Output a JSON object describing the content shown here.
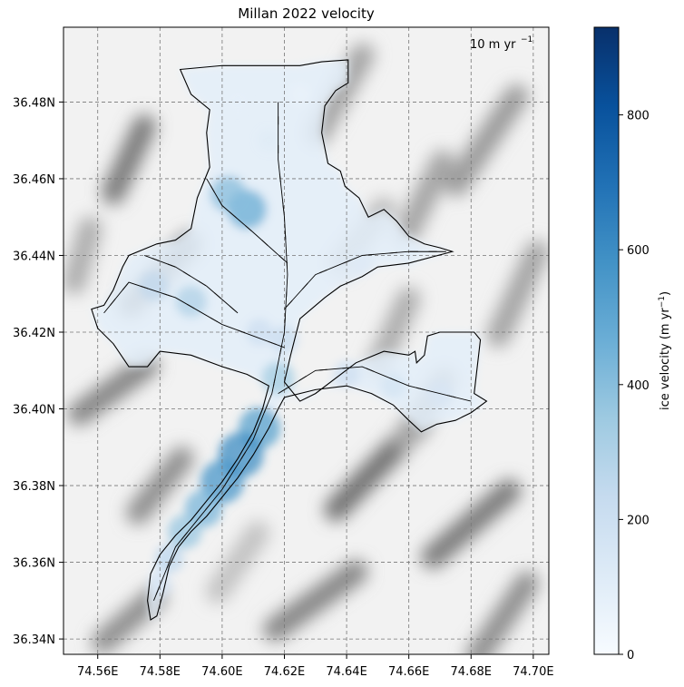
{
  "chart_data": {
    "type": "heatmap",
    "title": "Millan 2022 velocity",
    "x_ticks": [
      74.56,
      74.58,
      74.6,
      74.62,
      74.64,
      74.66,
      74.68,
      74.7
    ],
    "x_tick_labels": [
      "74.56E",
      "74.58E",
      "74.60E",
      "74.62E",
      "74.64E",
      "74.66E",
      "74.68E",
      "74.70E"
    ],
    "y_ticks": [
      36.34,
      36.36,
      36.38,
      36.4,
      36.42,
      36.44,
      36.46,
      36.48
    ],
    "y_tick_labels": [
      "36.34N",
      "36.36N",
      "36.38N",
      "36.40N",
      "36.42N",
      "36.44N",
      "36.46N",
      "36.48N"
    ],
    "xlim": [
      74.549,
      74.705
    ],
    "ylim": [
      36.336,
      36.4995
    ],
    "grid": true,
    "quiver_key_label": "10 m yr",
    "quiver_key_exponent": "−1",
    "colorbar": {
      "label": "ice velocity (m yr",
      "label_exponent": "−1",
      "label_suffix": ")",
      "ticks": [
        0,
        200,
        400,
        600,
        800
      ],
      "tick_labels": [
        "0",
        "200",
        "400",
        "600",
        "800"
      ],
      "range": [
        0,
        930
      ],
      "colormap": "Blues",
      "color_low": "#f7fbff",
      "color_high": "#08306b"
    },
    "glacier_outline": [
      [
        74.5865,
        36.4885
      ],
      [
        74.6,
        36.4895
      ],
      [
        74.625,
        36.4895
      ],
      [
        74.632,
        36.4905
      ],
      [
        74.6405,
        36.491
      ],
      [
        74.6405,
        36.485
      ],
      [
        74.6365,
        36.483
      ],
      [
        74.633,
        36.479
      ],
      [
        74.632,
        36.472
      ],
      [
        74.634,
        36.464
      ],
      [
        74.638,
        36.462
      ],
      [
        74.6395,
        36.458
      ],
      [
        74.644,
        36.455
      ],
      [
        74.647,
        36.45
      ],
      [
        74.652,
        36.452
      ],
      [
        74.656,
        36.449
      ],
      [
        74.66,
        36.445
      ],
      [
        74.665,
        36.443
      ],
      [
        74.67,
        36.442
      ],
      [
        74.674,
        36.441
      ],
      [
        74.66,
        36.438
      ],
      [
        74.65,
        36.437
      ],
      [
        74.645,
        36.4345
      ],
      [
        74.638,
        36.432
      ],
      [
        74.633,
        36.429
      ],
      [
        74.625,
        36.4235
      ],
      [
        74.622,
        36.414
      ],
      [
        74.62,
        36.407
      ],
      [
        74.625,
        36.402
      ],
      [
        74.63,
        36.404
      ],
      [
        74.643,
        36.412
      ],
      [
        74.652,
        36.415
      ],
      [
        74.66,
        36.414
      ],
      [
        74.662,
        36.415
      ],
      [
        74.6625,
        36.412
      ],
      [
        74.665,
        36.414
      ],
      [
        74.666,
        36.419
      ],
      [
        74.67,
        36.42
      ],
      [
        74.681,
        36.42
      ],
      [
        74.683,
        36.418
      ],
      [
        74.681,
        36.404
      ],
      [
        74.685,
        36.402
      ],
      [
        74.68,
        36.399
      ],
      [
        74.675,
        36.397
      ],
      [
        74.669,
        36.396
      ],
      [
        74.664,
        36.394
      ],
      [
        74.66,
        36.397
      ],
      [
        74.655,
        36.401
      ],
      [
        74.648,
        36.404
      ],
      [
        74.64,
        36.406
      ],
      [
        74.63,
        36.405
      ],
      [
        74.62,
        36.403
      ],
      [
        74.618,
        36.4
      ],
      [
        74.615,
        36.395
      ],
      [
        74.61,
        36.388
      ],
      [
        74.605,
        36.382
      ],
      [
        74.6,
        36.377
      ],
      [
        74.595,
        36.372
      ],
      [
        74.59,
        36.368
      ],
      [
        74.586,
        36.364
      ],
      [
        74.583,
        36.359
      ],
      [
        74.581,
        36.352
      ],
      [
        74.579,
        36.346
      ],
      [
        74.577,
        36.345
      ],
      [
        74.576,
        36.35
      ],
      [
        74.577,
        36.357
      ],
      [
        74.58,
        36.362
      ],
      [
        74.585,
        36.367
      ],
      [
        74.59,
        36.371
      ],
      [
        74.595,
        36.376
      ],
      [
        74.6,
        36.381
      ],
      [
        74.605,
        36.387
      ],
      [
        74.61,
        36.394
      ],
      [
        74.613,
        36.4
      ],
      [
        74.615,
        36.406
      ],
      [
        74.608,
        36.409
      ],
      [
        74.6,
        36.411
      ],
      [
        74.59,
        36.414
      ],
      [
        74.58,
        36.415
      ],
      [
        74.576,
        36.411
      ],
      [
        74.57,
        36.411
      ],
      [
        74.565,
        36.417
      ],
      [
        74.56,
        36.421
      ],
      [
        74.558,
        36.426
      ],
      [
        74.562,
        36.427
      ],
      [
        74.565,
        36.431
      ],
      [
        74.568,
        36.437
      ],
      [
        74.57,
        36.44
      ],
      [
        74.579,
        36.443
      ],
      [
        74.585,
        36.444
      ],
      [
        74.59,
        36.447
      ],
      [
        74.592,
        36.455
      ],
      [
        74.596,
        36.463
      ],
      [
        74.595,
        36.472
      ],
      [
        74.596,
        36.478
      ],
      [
        74.59,
        36.482
      ]
    ],
    "flowlines": [
      [
        [
          74.578,
          36.35
        ],
        [
          74.585,
          36.364
        ],
        [
          74.6,
          36.379
        ],
        [
          74.61,
          36.392
        ],
        [
          74.616,
          36.404
        ],
        [
          74.62,
          36.42
        ],
        [
          74.621,
          36.435
        ],
        [
          74.62,
          36.45
        ],
        [
          74.618,
          36.465
        ],
        [
          74.618,
          36.48
        ]
      ],
      [
        [
          74.62,
          36.416
        ],
        [
          74.6,
          36.422
        ],
        [
          74.585,
          36.429
        ],
        [
          74.57,
          36.433
        ],
        [
          74.562,
          36.425
        ]
      ],
      [
        [
          74.62,
          36.426
        ],
        [
          74.63,
          36.435
        ],
        [
          74.645,
          36.44
        ],
        [
          74.66,
          36.441
        ],
        [
          74.672,
          36.441
        ]
      ],
      [
        [
          74.618,
          36.404
        ],
        [
          74.63,
          36.41
        ],
        [
          74.645,
          36.411
        ],
        [
          74.66,
          36.406
        ],
        [
          74.68,
          36.402
        ]
      ],
      [
        [
          74.621,
          36.438
        ],
        [
          74.61,
          36.446
        ],
        [
          74.6,
          36.453
        ],
        [
          74.595,
          36.46
        ]
      ],
      [
        [
          74.605,
          36.425
        ],
        [
          74.595,
          36.432
        ],
        [
          74.585,
          36.437
        ],
        [
          74.575,
          36.44
        ]
      ]
    ],
    "velocity_field": [
      {
        "x": 74.612,
        "y": 36.395,
        "v": 520
      },
      {
        "x": 74.606,
        "y": 36.388,
        "v": 600
      },
      {
        "x": 74.6,
        "y": 36.381,
        "v": 560
      },
      {
        "x": 74.594,
        "y": 36.374,
        "v": 430
      },
      {
        "x": 74.588,
        "y": 36.368,
        "v": 360
      },
      {
        "x": 74.583,
        "y": 36.361,
        "v": 250
      },
      {
        "x": 74.58,
        "y": 36.354,
        "v": 150
      },
      {
        "x": 74.618,
        "y": 36.408,
        "v": 330
      },
      {
        "x": 74.62,
        "y": 36.418,
        "v": 220
      },
      {
        "x": 74.608,
        "y": 36.452,
        "v": 470
      },
      {
        "x": 74.602,
        "y": 36.456,
        "v": 400
      },
      {
        "x": 74.59,
        "y": 36.428,
        "v": 300
      },
      {
        "x": 74.578,
        "y": 36.432,
        "v": 250
      },
      {
        "x": 74.612,
        "y": 36.42,
        "v": 200
      },
      {
        "x": 74.64,
        "y": 36.409,
        "v": 200
      },
      {
        "x": 74.655,
        "y": 36.406,
        "v": 170
      },
      {
        "x": 74.67,
        "y": 36.404,
        "v": 150
      },
      {
        "x": 74.645,
        "y": 36.438,
        "v": 120
      },
      {
        "x": 74.66,
        "y": 36.44,
        "v": 100
      },
      {
        "x": 74.615,
        "y": 36.47,
        "v": 110
      },
      {
        "x": 74.605,
        "y": 36.48,
        "v": 80
      },
      {
        "x": 74.625,
        "y": 36.482,
        "v": 60
      }
    ],
    "hillshade_ridges": [
      {
        "x": 74.57,
        "y": 36.465,
        "l": 0.02,
        "a": 60,
        "d": 0.65
      },
      {
        "x": 74.638,
        "y": 36.482,
        "l": 0.025,
        "a": 55,
        "d": 0.45
      },
      {
        "x": 74.685,
        "y": 36.47,
        "l": 0.03,
        "a": 50,
        "d": 0.5
      },
      {
        "x": 74.665,
        "y": 36.455,
        "l": 0.022,
        "a": 58,
        "d": 0.45
      },
      {
        "x": 74.58,
        "y": 36.435,
        "l": 0.025,
        "a": 40,
        "d": 0.6
      },
      {
        "x": 74.645,
        "y": 36.445,
        "l": 0.02,
        "a": 45,
        "d": 0.35
      },
      {
        "x": 74.695,
        "y": 36.43,
        "l": 0.025,
        "a": 60,
        "d": 0.45
      },
      {
        "x": 74.565,
        "y": 36.405,
        "l": 0.025,
        "a": 30,
        "d": 0.6
      },
      {
        "x": 74.655,
        "y": 36.42,
        "l": 0.02,
        "a": 60,
        "d": 0.4
      },
      {
        "x": 74.58,
        "y": 36.38,
        "l": 0.02,
        "a": 45,
        "d": 0.55
      },
      {
        "x": 74.65,
        "y": 36.385,
        "l": 0.035,
        "a": 40,
        "d": 0.7
      },
      {
        "x": 74.68,
        "y": 36.37,
        "l": 0.03,
        "a": 35,
        "d": 0.65
      },
      {
        "x": 74.63,
        "y": 36.35,
        "l": 0.03,
        "a": 30,
        "d": 0.6
      },
      {
        "x": 74.57,
        "y": 36.345,
        "l": 0.02,
        "a": 35,
        "d": 0.55
      },
      {
        "x": 74.69,
        "y": 36.345,
        "l": 0.025,
        "a": 50,
        "d": 0.55
      },
      {
        "x": 74.605,
        "y": 36.36,
        "l": 0.02,
        "a": 50,
        "d": 0.3
      },
      {
        "x": 74.555,
        "y": 36.44,
        "l": 0.015,
        "a": 70,
        "d": 0.4
      },
      {
        "x": 74.665,
        "y": 36.4,
        "l": 0.02,
        "a": 50,
        "d": 0.45
      }
    ]
  }
}
